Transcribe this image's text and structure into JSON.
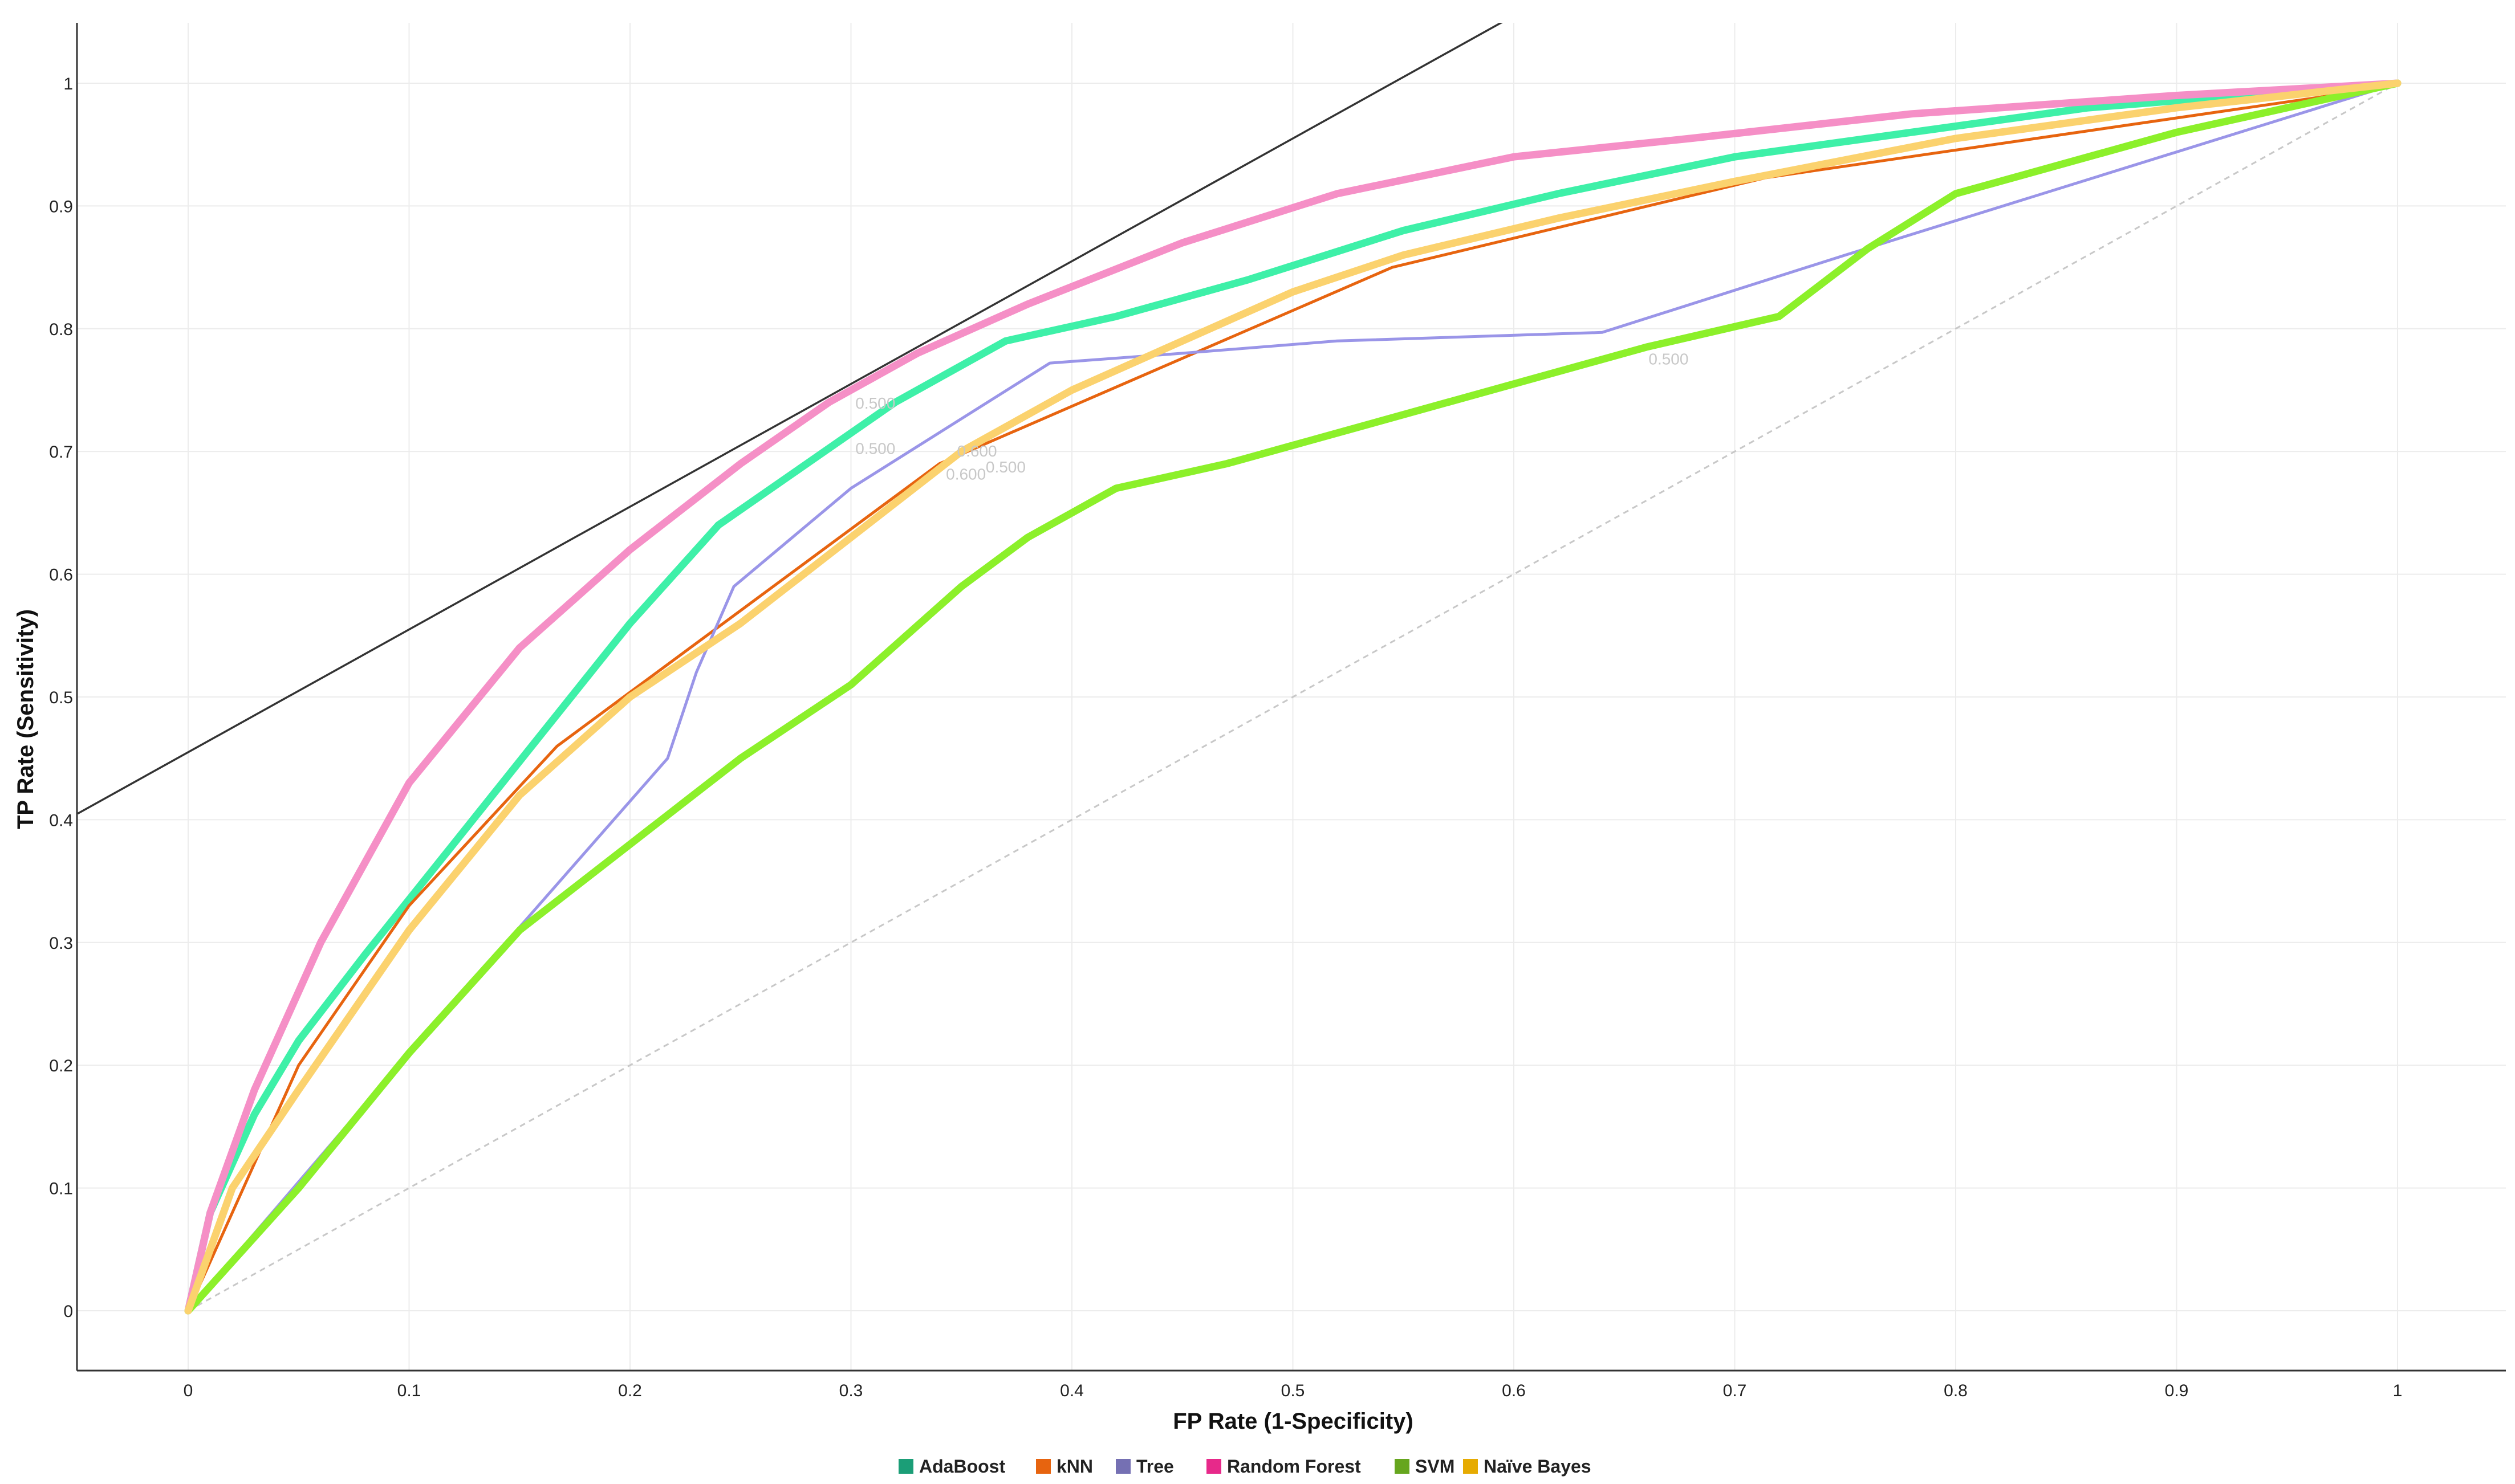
{
  "chart_data": {
    "type": "line",
    "title": "",
    "xlabel": "FP Rate (1-Specificity)",
    "ylabel": "TP Rate (Sensitivity)",
    "xlim": [
      -0.05,
      1.05
    ],
    "ylim": [
      -0.05,
      1.05
    ],
    "x_ticks": [
      "0",
      "0.1",
      "0.2",
      "0.3",
      "0.4",
      "0.5",
      "0.6",
      "0.7",
      "0.8",
      "0.9",
      "1"
    ],
    "y_ticks": [
      "0",
      "0.1",
      "0.2",
      "0.3",
      "0.4",
      "0.5",
      "0.6",
      "0.7",
      "0.8",
      "0.9",
      "1"
    ],
    "grid": true,
    "legend_position": "bottom",
    "reference_lines": [
      {
        "role": "diagonal",
        "x": [
          0,
          1
        ],
        "y": [
          0,
          1
        ],
        "color": "#c8c8c8",
        "dash": true
      },
      {
        "role": "iso-performance",
        "x": [
          -0.05,
          0.595
        ],
        "y": [
          0.405,
          1.05
        ],
        "color": "#333333",
        "dash": false
      }
    ],
    "series": [
      {
        "name": "AdaBoost",
        "color": "#1b9e77",
        "curve_color": "#3ef0a8",
        "x": [
          0,
          0.01,
          0.03,
          0.05,
          0.08,
          0.12,
          0.16,
          0.2,
          0.24,
          0.28,
          0.32,
          0.37,
          0.42,
          0.48,
          0.55,
          0.62,
          0.7,
          0.78,
          0.86,
          0.93,
          1
        ],
        "y": [
          0,
          0.08,
          0.16,
          0.22,
          0.29,
          0.38,
          0.47,
          0.56,
          0.64,
          0.69,
          0.74,
          0.79,
          0.81,
          0.84,
          0.88,
          0.91,
          0.94,
          0.96,
          0.98,
          0.99,
          1
        ]
      },
      {
        "name": "kNN",
        "color": "#e7640f",
        "curve_color": "#e7640f",
        "x": [
          0,
          0.05,
          0.1,
          0.167,
          0.34,
          0.545,
          0.714,
          0.97,
          1
        ],
        "y": [
          0,
          0.2,
          0.33,
          0.46,
          0.69,
          0.85,
          0.923,
          0.99,
          1
        ]
      },
      {
        "name": "Tree",
        "color": "#7570b3",
        "curve_color": "#9a95e8",
        "x": [
          0,
          0.1,
          0.217,
          0.23,
          0.247,
          0.3,
          0.39,
          0.45,
          0.52,
          0.64,
          0.75,
          1
        ],
        "y": [
          0,
          0.21,
          0.45,
          0.52,
          0.59,
          0.67,
          0.772,
          0.78,
          0.79,
          0.797,
          0.86,
          1
        ]
      },
      {
        "name": "Random Forest",
        "color": "#e7298a",
        "curve_color": "#f58fc6",
        "x": [
          0,
          0.01,
          0.03,
          0.06,
          0.1,
          0.15,
          0.2,
          0.25,
          0.29,
          0.33,
          0.38,
          0.45,
          0.52,
          0.6,
          0.68,
          0.78,
          0.9,
          1
        ],
        "y": [
          0,
          0.08,
          0.18,
          0.3,
          0.43,
          0.54,
          0.62,
          0.69,
          0.74,
          0.78,
          0.82,
          0.87,
          0.91,
          0.94,
          0.955,
          0.975,
          0.99,
          1
        ]
      },
      {
        "name": "SVM",
        "color": "#66a61e",
        "curve_color": "#8cf02a",
        "x": [
          0,
          0.05,
          0.1,
          0.15,
          0.2,
          0.25,
          0.3,
          0.35,
          0.38,
          0.42,
          0.47,
          0.48,
          0.66,
          0.72,
          0.76,
          0.8,
          0.9,
          1
        ],
        "y": [
          0,
          0.1,
          0.21,
          0.31,
          0.38,
          0.45,
          0.51,
          0.59,
          0.63,
          0.67,
          0.69,
          0.695,
          0.785,
          0.81,
          0.865,
          0.91,
          0.96,
          1
        ]
      },
      {
        "name": "Naïve Bayes",
        "color": "#e6ab02",
        "curve_color": "#fbd26e",
        "x": [
          0,
          0.02,
          0.05,
          0.1,
          0.15,
          0.2,
          0.25,
          0.3,
          0.35,
          0.4,
          0.45,
          0.5,
          0.55,
          0.62,
          0.7,
          0.8,
          0.9,
          1
        ],
        "y": [
          0,
          0.1,
          0.18,
          0.31,
          0.42,
          0.5,
          0.56,
          0.63,
          0.7,
          0.75,
          0.79,
          0.83,
          0.86,
          0.89,
          0.92,
          0.955,
          0.98,
          1
        ]
      }
    ],
    "threshold_labels": [
      {
        "text": "0.500",
        "x": 0.302,
        "y": 0.735
      },
      {
        "text": "0.500",
        "x": 0.302,
        "y": 0.698
      },
      {
        "text": "0.600",
        "x": 0.348,
        "y": 0.696
      },
      {
        "text": "0.600",
        "x": 0.343,
        "y": 0.677
      },
      {
        "text": "0.500",
        "x": 0.361,
        "y": 0.683
      },
      {
        "text": "0.500",
        "x": 0.661,
        "y": 0.771
      }
    ]
  }
}
